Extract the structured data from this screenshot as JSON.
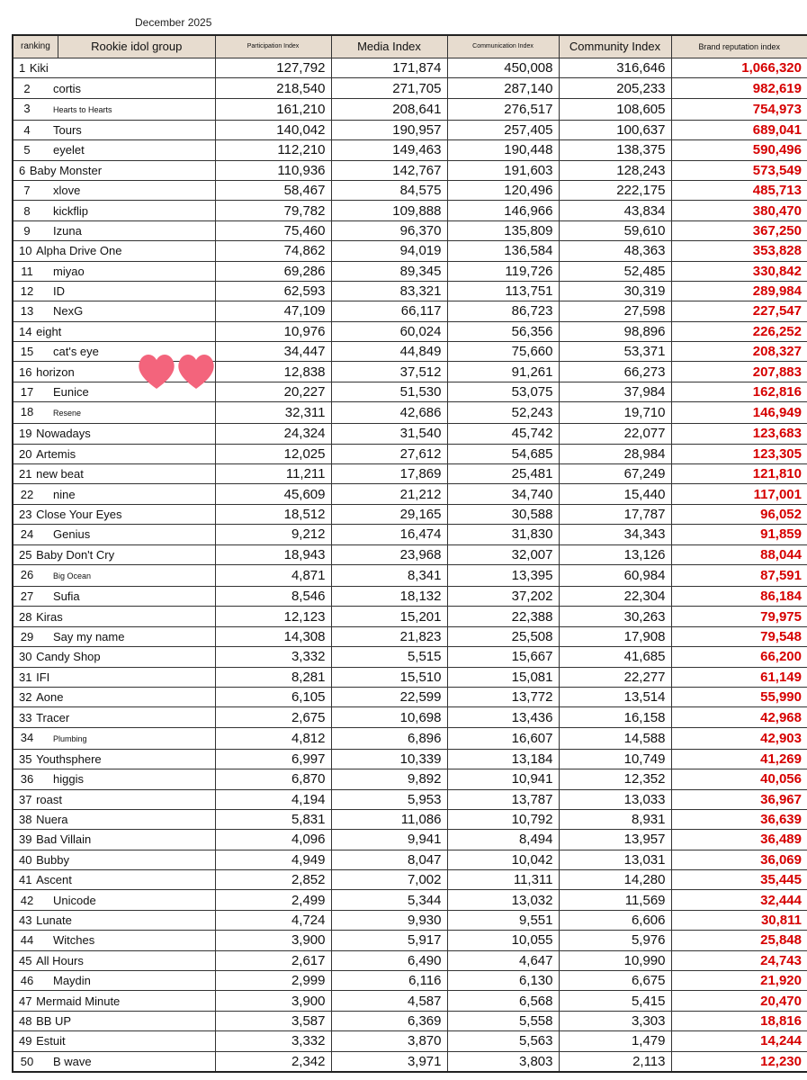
{
  "caption": "December 2025",
  "colors": {
    "header_bg": "#e7dccf",
    "brand_value": "#d60000",
    "heart": "#f3647c"
  },
  "hearts_icon": "heart-icon",
  "columns": [
    "ranking",
    "Rookie idol group",
    "Participation Index",
    "Media Index",
    "Communication Index",
    "Community Index",
    "Brand reputation index"
  ],
  "rows": [
    {
      "rank": "1",
      "group": "Kiki",
      "p": "127,792",
      "m": "171,874",
      "c": "450,008",
      "co": "316,646",
      "b": "1,066,320",
      "style": "inline"
    },
    {
      "rank": "2",
      "group": "cortis",
      "p": "218,540",
      "m": "271,705",
      "c": "287,140",
      "co": "205,233",
      "b": "982,619",
      "style": "split"
    },
    {
      "rank": "3",
      "group": "Hearts to Hearts",
      "p": "161,210",
      "m": "208,641",
      "c": "276,517",
      "co": "108,605",
      "b": "754,973",
      "style": "split-small"
    },
    {
      "rank": "4",
      "group": "Tours",
      "p": "140,042",
      "m": "190,957",
      "c": "257,405",
      "co": "100,637",
      "b": "689,041",
      "style": "split"
    },
    {
      "rank": "5",
      "group": "eyelet",
      "p": "112,210",
      "m": "149,463",
      "c": "190,448",
      "co": "138,375",
      "b": "590,496",
      "style": "split"
    },
    {
      "rank": "6",
      "group": "Baby Monster",
      "p": "110,936",
      "m": "142,767",
      "c": "191,603",
      "co": "128,243",
      "b": "573,549",
      "style": "inline"
    },
    {
      "rank": "7",
      "group": "xlove",
      "p": "58,467",
      "m": "84,575",
      "c": "120,496",
      "co": "222,175",
      "b": "485,713",
      "style": "split"
    },
    {
      "rank": "8",
      "group": "kickflip",
      "p": "79,782",
      "m": "109,888",
      "c": "146,966",
      "co": "43,834",
      "b": "380,470",
      "style": "split"
    },
    {
      "rank": "9",
      "group": "Izuna",
      "p": "75,460",
      "m": "96,370",
      "c": "135,809",
      "co": "59,610",
      "b": "367,250",
      "style": "split"
    },
    {
      "rank": "10",
      "group": "Alpha Drive One",
      "p": "74,862",
      "m": "94,019",
      "c": "136,584",
      "co": "48,363",
      "b": "353,828",
      "style": "inline"
    },
    {
      "rank": "11",
      "group": "miyao",
      "p": "69,286",
      "m": "89,345",
      "c": "119,726",
      "co": "52,485",
      "b": "330,842",
      "style": "split"
    },
    {
      "rank": "12",
      "group": "ID",
      "p": "62,593",
      "m": "83,321",
      "c": "113,751",
      "co": "30,319",
      "b": "289,984",
      "style": "split"
    },
    {
      "rank": "13",
      "group": "NexG",
      "p": "47,109",
      "m": "66,117",
      "c": "86,723",
      "co": "27,598",
      "b": "227,547",
      "style": "split"
    },
    {
      "rank": "14",
      "group": "eight",
      "p": "10,976",
      "m": "60,024",
      "c": "56,356",
      "co": "98,896",
      "b": "226,252",
      "style": "inline"
    },
    {
      "rank": "15",
      "group": "cat's eye",
      "p": "34,447",
      "m": "44,849",
      "c": "75,660",
      "co": "53,371",
      "b": "208,327",
      "style": "split"
    },
    {
      "rank": "16",
      "group": "horizon",
      "p": "12,838",
      "m": "37,512",
      "c": "91,261",
      "co": "66,273",
      "b": "207,883",
      "style": "inline"
    },
    {
      "rank": "17",
      "group": "Eunice",
      "p": "20,227",
      "m": "51,530",
      "c": "53,075",
      "co": "37,984",
      "b": "162,816",
      "style": "split"
    },
    {
      "rank": "18",
      "group": "Resene",
      "p": "32,311",
      "m": "42,686",
      "c": "52,243",
      "co": "19,710",
      "b": "146,949",
      "style": "split-small"
    },
    {
      "rank": "19",
      "group": "Nowadays",
      "p": "24,324",
      "m": "31,540",
      "c": "45,742",
      "co": "22,077",
      "b": "123,683",
      "style": "inline"
    },
    {
      "rank": "20",
      "group": "Artemis",
      "p": "12,025",
      "m": "27,612",
      "c": "54,685",
      "co": "28,984",
      "b": "123,305",
      "style": "inline"
    },
    {
      "rank": "21",
      "group": "new beat",
      "p": "11,211",
      "m": "17,869",
      "c": "25,481",
      "co": "67,249",
      "b": "121,810",
      "style": "inline"
    },
    {
      "rank": "22",
      "group": "nine",
      "p": "45,609",
      "m": "21,212",
      "c": "34,740",
      "co": "15,440",
      "b": "117,001",
      "style": "split"
    },
    {
      "rank": "23",
      "group": "Close Your Eyes",
      "p": "18,512",
      "m": "29,165",
      "c": "30,588",
      "co": "17,787",
      "b": "96,052",
      "style": "inline"
    },
    {
      "rank": "24",
      "group": "Genius",
      "p": "9,212",
      "m": "16,474",
      "c": "31,830",
      "co": "34,343",
      "b": "91,859",
      "style": "split"
    },
    {
      "rank": "25",
      "group": "Baby Don't Cry",
      "p": "18,943",
      "m": "23,968",
      "c": "32,007",
      "co": "13,126",
      "b": "88,044",
      "style": "inline"
    },
    {
      "rank": "26",
      "group": "Big Ocean",
      "p": "4,871",
      "m": "8,341",
      "c": "13,395",
      "co": "60,984",
      "b": "87,591",
      "style": "split-small"
    },
    {
      "rank": "27",
      "group": "Sufia",
      "p": "8,546",
      "m": "18,132",
      "c": "37,202",
      "co": "22,304",
      "b": "86,184",
      "style": "split"
    },
    {
      "rank": "28",
      "group": "Kiras",
      "p": "12,123",
      "m": "15,201",
      "c": "22,388",
      "co": "30,263",
      "b": "79,975",
      "style": "inline"
    },
    {
      "rank": "29",
      "group": "Say my name",
      "p": "14,308",
      "m": "21,823",
      "c": "25,508",
      "co": "17,908",
      "b": "79,548",
      "style": "split"
    },
    {
      "rank": "30",
      "group": "Candy Shop",
      "p": "3,332",
      "m": "5,515",
      "c": "15,667",
      "co": "41,685",
      "b": "66,200",
      "style": "inline"
    },
    {
      "rank": "31",
      "group": "IFI",
      "p": "8,281",
      "m": "15,510",
      "c": "15,081",
      "co": "22,277",
      "b": "61,149",
      "style": "inline"
    },
    {
      "rank": "32",
      "group": "Aone",
      "p": "6,105",
      "m": "22,599",
      "c": "13,772",
      "co": "13,514",
      "b": "55,990",
      "style": "inline"
    },
    {
      "rank": "33",
      "group": "Tracer",
      "p": "2,675",
      "m": "10,698",
      "c": "13,436",
      "co": "16,158",
      "b": "42,968",
      "style": "inline"
    },
    {
      "rank": "34",
      "group": "Plumbing",
      "p": "4,812",
      "m": "6,896",
      "c": "16,607",
      "co": "14,588",
      "b": "42,903",
      "style": "split-small"
    },
    {
      "rank": "35",
      "group": "Youthsphere",
      "p": "6,997",
      "m": "10,339",
      "c": "13,184",
      "co": "10,749",
      "b": "41,269",
      "style": "inline"
    },
    {
      "rank": "36",
      "group": "higgis",
      "p": "6,870",
      "m": "9,892",
      "c": "10,941",
      "co": "12,352",
      "b": "40,056",
      "style": "split"
    },
    {
      "rank": "37",
      "group": "roast",
      "p": "4,194",
      "m": "5,953",
      "c": "13,787",
      "co": "13,033",
      "b": "36,967",
      "style": "inline"
    },
    {
      "rank": "38",
      "group": "Nuera",
      "p": "5,831",
      "m": "11,086",
      "c": "10,792",
      "co": "8,931",
      "b": "36,639",
      "style": "inline"
    },
    {
      "rank": "39",
      "group": "Bad Villain",
      "p": "4,096",
      "m": "9,941",
      "c": "8,494",
      "co": "13,957",
      "b": "36,489",
      "style": "inline"
    },
    {
      "rank": "40",
      "group": "Bubby",
      "p": "4,949",
      "m": "8,047",
      "c": "10,042",
      "co": "13,031",
      "b": "36,069",
      "style": "inline"
    },
    {
      "rank": "41",
      "group": "Ascent",
      "p": "2,852",
      "m": "7,002",
      "c": "11,311",
      "co": "14,280",
      "b": "35,445",
      "style": "inline"
    },
    {
      "rank": "42",
      "group": "Unicode",
      "p": "2,499",
      "m": "5,344",
      "c": "13,032",
      "co": "11,569",
      "b": "32,444",
      "style": "split"
    },
    {
      "rank": "43",
      "group": "Lunate",
      "p": "4,724",
      "m": "9,930",
      "c": "9,551",
      "co": "6,606",
      "b": "30,811",
      "style": "inline"
    },
    {
      "rank": "44",
      "group": "Witches",
      "p": "3,900",
      "m": "5,917",
      "c": "10,055",
      "co": "5,976",
      "b": "25,848",
      "style": "split"
    },
    {
      "rank": "45",
      "group": "All Hours",
      "p": "2,617",
      "m": "6,490",
      "c": "4,647",
      "co": "10,990",
      "b": "24,743",
      "style": "inline"
    },
    {
      "rank": "46",
      "group": "Maydin",
      "p": "2,999",
      "m": "6,116",
      "c": "6,130",
      "co": "6,675",
      "b": "21,920",
      "style": "split"
    },
    {
      "rank": "47",
      "group": "Mermaid Minute",
      "p": "3,900",
      "m": "4,587",
      "c": "6,568",
      "co": "5,415",
      "b": "20,470",
      "style": "inline"
    },
    {
      "rank": "48",
      "group": "BB UP",
      "p": "3,587",
      "m": "6,369",
      "c": "5,558",
      "co": "3,303",
      "b": "18,816",
      "style": "inline"
    },
    {
      "rank": "49",
      "group": "Estuit",
      "p": "3,332",
      "m": "3,870",
      "c": "5,563",
      "co": "1,479",
      "b": "14,244",
      "style": "inline"
    },
    {
      "rank": "50",
      "group": "B wave",
      "p": "2,342",
      "m": "3,971",
      "c": "3,803",
      "co": "2,113",
      "b": "12,230",
      "style": "split"
    }
  ]
}
